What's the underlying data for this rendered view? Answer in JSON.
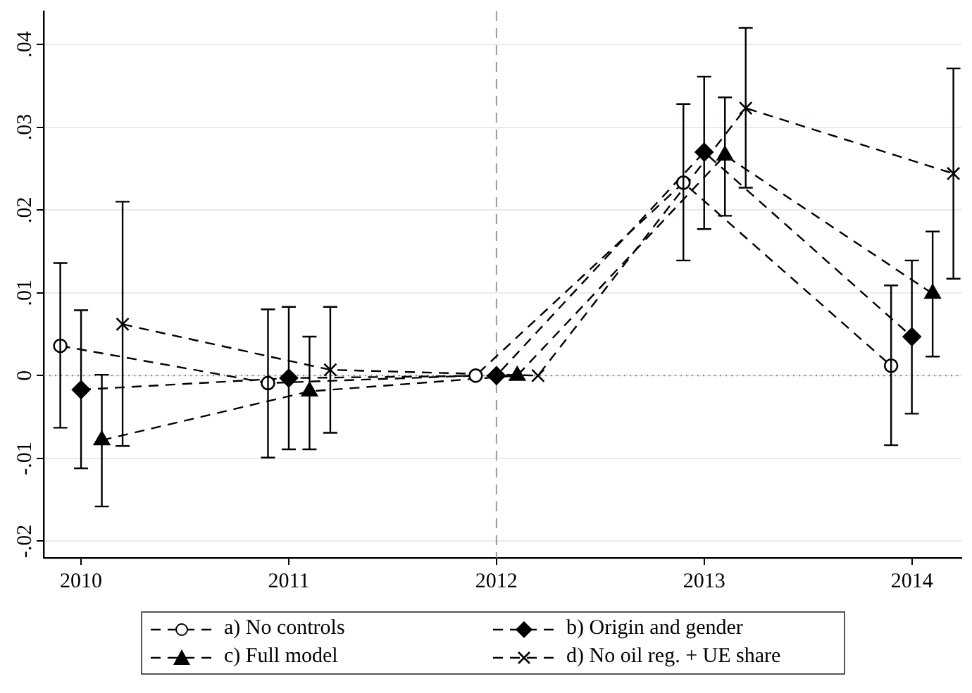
{
  "chart_data": {
    "type": "line",
    "xlim": [
      2009.82,
      2014.24
    ],
    "xticks": [
      2010,
      2011,
      2012,
      2013,
      2014
    ],
    "ylim": [
      -0.022,
      0.044
    ],
    "yticks": [
      {
        "value": -0.02,
        "label": "-.02"
      },
      {
        "value": -0.01,
        "label": "-.01"
      },
      {
        "value": 0,
        "label": "0"
      },
      {
        "value": 0.01,
        "label": ".01"
      },
      {
        "value": 0.02,
        "label": ".02"
      },
      {
        "value": 0.03,
        "label": ".03"
      },
      {
        "value": 0.04,
        "label": ".04"
      }
    ],
    "grid": "y",
    "legend": "bottom",
    "line_style": "dashed",
    "ref_lines": [
      {
        "axis": "y",
        "value": 0,
        "color": "#888888",
        "line_style": "dotted"
      },
      {
        "axis": "x",
        "value": 2012,
        "color": "#999999",
        "line_style": "dashed"
      }
    ],
    "series": [
      {
        "name": "a) No controls",
        "color": "#000000",
        "marker": "circle",
        "x": [
          2009.9,
          2010.9,
          2011.9,
          2012.9,
          2013.9
        ],
        "values": [
          0.0036,
          -0.0009,
          0,
          0.0233,
          0.0012
        ],
        "errors": [
          [
            -0.0063,
            0.0136
          ],
          [
            -0.0099,
            0.008
          ],
          null,
          [
            0.0139,
            0.0328
          ],
          [
            -0.0084,
            0.0109
          ]
        ]
      },
      {
        "name": "b) Origin and gender",
        "color": "#000000",
        "marker": "diamond",
        "x": [
          2010,
          2011,
          2012,
          2013,
          2014
        ],
        "values": [
          -0.0017,
          -0.0003,
          0,
          0.027,
          0.0047
        ],
        "errors": [
          [
            -0.0112,
            0.0079
          ],
          [
            -0.0089,
            0.0083
          ],
          null,
          [
            0.0177,
            0.0361
          ],
          [
            -0.0046,
            0.0139
          ]
        ]
      },
      {
        "name": "c) Full model",
        "color": "#000000",
        "marker": "triangle",
        "x": [
          2010.1,
          2011.1,
          2012.1,
          2013.1,
          2014.1
        ],
        "values": [
          -0.0078,
          -0.0019,
          0,
          0.0266,
          0.0099
        ],
        "errors": [
          [
            -0.0158,
            0.0001
          ],
          [
            -0.0089,
            0.0047
          ],
          null,
          [
            0.0193,
            0.0336
          ],
          [
            0.0023,
            0.0174
          ]
        ]
      },
      {
        "name": "d) No oil reg. + UE share",
        "color": "#000000",
        "marker": "cross",
        "x": [
          2010.2,
          2011.2,
          2012.2,
          2013.2,
          2014.2
        ],
        "values": [
          0.0062,
          0.0007,
          0,
          0.0323,
          0.0244
        ],
        "errors": [
          [
            -0.0085,
            0.021
          ],
          [
            -0.0069,
            0.0083
          ],
          null,
          [
            0.0227,
            0.042
          ],
          [
            0.0117,
            0.0371
          ]
        ]
      }
    ]
  }
}
